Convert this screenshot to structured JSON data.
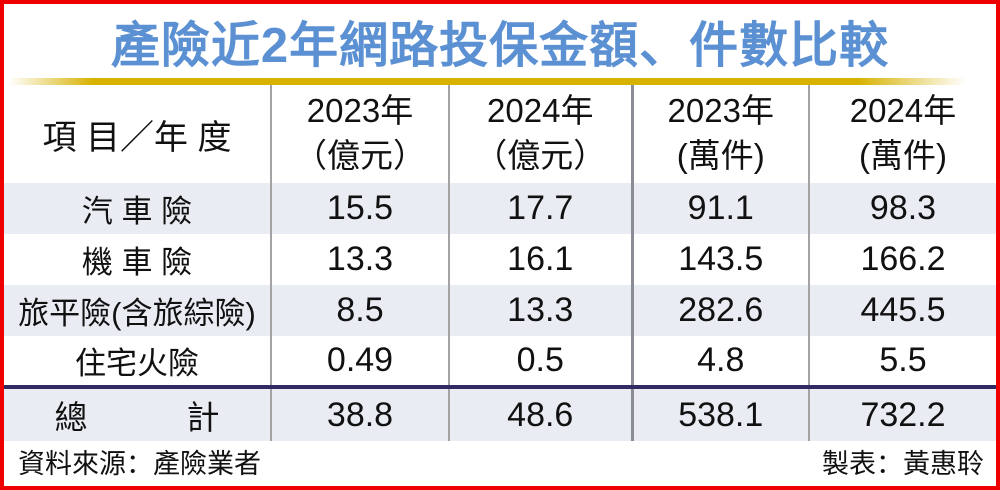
{
  "title": "產險近2年網路投保金額、件數比較",
  "colors": {
    "border_red": "#ee0000",
    "title_blue": "#5b90d2",
    "gold_bar": "#d7b200",
    "alt_row_bg": "#e9edf3",
    "total_divider_navy": "#302b63",
    "column_line_gray": "#a3a3a3"
  },
  "table": {
    "corner_header": "項 目／年 度",
    "column_headers": [
      {
        "year": "2023年",
        "unit": "（億元）"
      },
      {
        "year": "2024年",
        "unit": "（億元）"
      },
      {
        "year": "2023年",
        "unit": "(萬件)"
      },
      {
        "year": "2024年",
        "unit": "(萬件)"
      }
    ],
    "rows": [
      {
        "label": "汽 車 險",
        "values": [
          "15.5",
          "17.7",
          "91.1",
          "98.3"
        ]
      },
      {
        "label": "機 車 險",
        "values": [
          "13.3",
          "16.1",
          "143.5",
          "166.2"
        ]
      },
      {
        "label": "旅平險(含旅綜險)",
        "values": [
          "8.5",
          "13.3",
          "282.6",
          "445.5"
        ]
      },
      {
        "label": "住宅火險",
        "values": [
          "0.49",
          "0.5",
          "4.8",
          "5.5"
        ]
      }
    ],
    "total_row": {
      "label": "總　　　計",
      "values": [
        "38.8",
        "48.6",
        "538.1",
        "732.2"
      ]
    }
  },
  "footer": {
    "source": "資料來源：產險業者",
    "credit": "製表：黃惠聆"
  },
  "chart_data": {
    "type": "table",
    "title": "產險近2年網路投保金額、件數比較",
    "columns": [
      "項目／年度",
      "2023年（億元）",
      "2024年（億元）",
      "2023年(萬件)",
      "2024年(萬件)"
    ],
    "rows": [
      [
        "汽車險",
        15.5,
        17.7,
        91.1,
        98.3
      ],
      [
        "機車險",
        13.3,
        16.1,
        143.5,
        166.2
      ],
      [
        "旅平險(含旅綜險)",
        8.5,
        13.3,
        282.6,
        445.5
      ],
      [
        "住宅火險",
        0.49,
        0.5,
        4.8,
        5.5
      ],
      [
        "總計",
        38.8,
        48.6,
        538.1,
        732.2
      ]
    ],
    "source": "產險業者",
    "credit": "黃惠聆"
  }
}
